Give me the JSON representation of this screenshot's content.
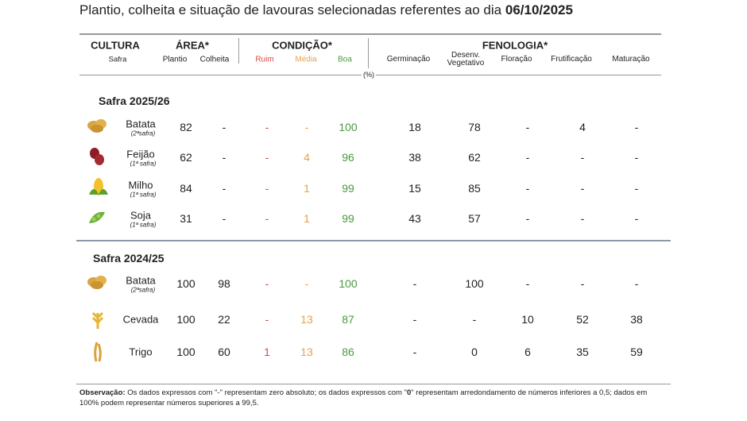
{
  "title": {
    "text": "Plantio, colheita e situação de lavouras selecionadas referentes ao dia",
    "date": "06/10/2025"
  },
  "header": {
    "cultura": {
      "label": "CULTURA",
      "sub": "Safra"
    },
    "area": {
      "label": "ÁREA*",
      "subs": [
        "Plantio",
        "Colheita"
      ]
    },
    "condicao": {
      "label": "CONDIÇÃO*",
      "subs": [
        "Ruim",
        "Média",
        "Boa"
      ]
    },
    "fenologia": {
      "label": "FENOLOGIA*",
      "subs": [
        "Germinação",
        "Desenv. Vegetativo",
        "Floração",
        "Frutificação",
        "Maturação"
      ]
    },
    "unit": "(%)"
  },
  "sections": [
    {
      "label": "Safra 2025/26",
      "rows": [
        {
          "crop": "Batata",
          "note": "(2ªsafra)",
          "cells": [
            82,
            "-",
            "-",
            "-",
            100,
            18,
            78,
            "-",
            4,
            "-"
          ]
        },
        {
          "crop": "Feijão",
          "note": "(1ª safra)",
          "cells": [
            62,
            "-",
            "-",
            4,
            96,
            38,
            62,
            "-",
            "-",
            "-"
          ]
        },
        {
          "crop": "Milho",
          "note": "(1ª safra)",
          "cells": [
            84,
            "-",
            "-",
            1,
            99,
            15,
            85,
            "-",
            "-",
            "-"
          ]
        },
        {
          "crop": "Soja",
          "note": "(1ª safra)",
          "cells": [
            31,
            "-",
            "-",
            1,
            99,
            43,
            57,
            "-",
            "-",
            "-"
          ]
        }
      ]
    },
    {
      "label": "Safra 2024/25",
      "rows": [
        {
          "crop": "Batata",
          "note": "(2ªsafra)",
          "cells": [
            100,
            98,
            "-",
            "-",
            100,
            "-",
            100,
            "-",
            "-",
            "-"
          ]
        },
        {
          "crop": "Cevada",
          "cells": [
            100,
            22,
            "-",
            13,
            87,
            "-",
            "-",
            10,
            52,
            38
          ]
        },
        {
          "crop": "Trigo",
          "cells": [
            100,
            60,
            1,
            13,
            86,
            "-",
            0,
            6,
            35,
            59
          ]
        }
      ]
    }
  ],
  "note": {
    "label": "Observação:",
    "parts": [
      "Os dados expressos com \"-\" representam zero absoluto; os dados expressos com \"",
      "0",
      "\" representam arredondamento de números inferiores a 0,5; dados em 100% podem representar números superiores a 99,5."
    ]
  }
}
